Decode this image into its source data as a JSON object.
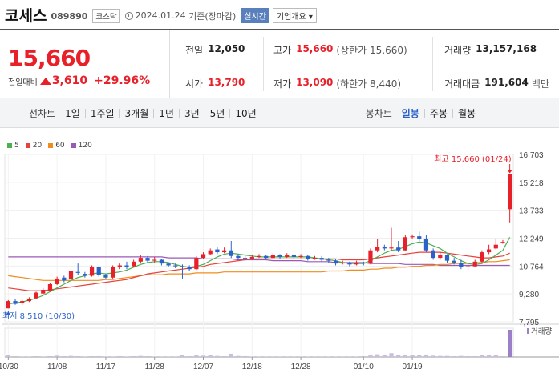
{
  "header": {
    "name": "코세스",
    "code": "089890",
    "market": "코스닥",
    "date": "2024.01.24",
    "basis": "기준(장마감)",
    "realtime": "실시간",
    "company_info": "기업개요"
  },
  "price": {
    "current": "15,660",
    "compare_label": "전일대비",
    "change": "3,610",
    "change_pct": "+29.96%"
  },
  "stats": {
    "prev_label": "전일",
    "prev": "12,050",
    "open_label": "시가",
    "open": "13,790",
    "high_label": "고가",
    "high": "15,660",
    "high_sub": "(상한가 15,660)",
    "low_label": "저가",
    "low": "13,090",
    "low_sub": "(하한가 8,440)",
    "volume_label": "거래량",
    "volume": "13,157,168",
    "amount_label": "거래대금",
    "amount": "191,604",
    "amount_unit": "백만"
  },
  "toolbar": {
    "line_label": "선차트",
    "line_items": [
      "1일",
      "1주일",
      "3개월",
      "1년",
      "3년",
      "5년",
      "10년"
    ],
    "candle_label": "봉차트",
    "candle_items": [
      "일봉",
      "주봉",
      "월봉"
    ],
    "active_candle": "일봉"
  },
  "colors": {
    "up": "#e8202a",
    "down": "#2a62c9",
    "ma5": "#4caf50",
    "ma20": "#e8413c",
    "ma60": "#f08c1e",
    "ma120": "#9b59b6"
  },
  "chart_data": {
    "type": "candlestick",
    "legend": [
      "5",
      "20",
      "60",
      "120"
    ],
    "y_ticks": [
      "16,703",
      "15,218",
      "13,733",
      "12,249",
      "10,764",
      "9,280",
      "7,795"
    ],
    "y_range": [
      7795,
      16703
    ],
    "x_ticks": [
      "10/30",
      "11/08",
      "11/17",
      "11/28",
      "12/07",
      "12/18",
      "12/28",
      "01/10",
      "01/19"
    ],
    "high_annotation": "최고 15,660 (01/24)",
    "low_annotation": "최저 8,510 (10/30)",
    "volume_label": "거래량",
    "candles": [
      [
        8510,
        8900,
        8510,
        8950
      ],
      [
        8900,
        8750,
        8700,
        9000
      ],
      [
        8800,
        8900,
        8700,
        8950
      ],
      [
        8900,
        9000,
        8850,
        9100
      ],
      [
        9050,
        9350,
        9000,
        9400
      ],
      [
        9300,
        9500,
        9250,
        9600
      ],
      [
        9450,
        9800,
        9400,
        9850
      ],
      [
        9800,
        10100,
        9750,
        10200
      ],
      [
        10150,
        10000,
        9900,
        10250
      ],
      [
        10050,
        10500,
        10000,
        10700
      ],
      [
        10450,
        10400,
        10300,
        10900
      ],
      [
        10350,
        10250,
        10150,
        10450
      ],
      [
        10250,
        10700,
        10200,
        10800
      ],
      [
        10700,
        10300,
        10200,
        10750
      ],
      [
        10300,
        10150,
        10050,
        10350
      ],
      [
        10150,
        10700,
        10100,
        10800
      ],
      [
        10700,
        10800,
        10600,
        10900
      ],
      [
        10800,
        10700,
        10600,
        11000
      ],
      [
        10750,
        11000,
        10700,
        11100
      ],
      [
        11000,
        11200,
        10900,
        11350
      ],
      [
        11200,
        11050,
        10950,
        11300
      ],
      [
        11050,
        11100,
        10950,
        11250
      ],
      [
        11100,
        10900,
        10800,
        11150
      ],
      [
        10900,
        10800,
        10700,
        10950
      ],
      [
        10800,
        10750,
        10650,
        10900
      ],
      [
        10750,
        10700,
        10100,
        10850
      ],
      [
        10700,
        10600,
        10500,
        10800
      ],
      [
        10600,
        11200,
        10550,
        11300
      ],
      [
        11200,
        11400,
        11150,
        11500
      ],
      [
        11400,
        11600,
        11350,
        11700
      ],
      [
        11650,
        11500,
        11400,
        11800
      ],
      [
        11500,
        11600,
        11450,
        11750
      ],
      [
        11600,
        11300,
        11200,
        12100
      ],
      [
        11300,
        11200,
        11100,
        11400
      ],
      [
        11200,
        11150,
        11050,
        11300
      ],
      [
        11150,
        11250,
        11100,
        11350
      ],
      [
        11250,
        11300,
        11200,
        11400
      ],
      [
        11300,
        11200,
        11100,
        11350
      ],
      [
        11200,
        11350,
        11150,
        11450
      ],
      [
        11350,
        11250,
        11150,
        11400
      ],
      [
        11250,
        11350,
        11200,
        11450
      ],
      [
        11350,
        11250,
        11150,
        11400
      ],
      [
        11250,
        11300,
        11200,
        11400
      ],
      [
        11300,
        11150,
        11050,
        11350
      ],
      [
        11150,
        11200,
        11100,
        11300
      ],
      [
        11200,
        11100,
        11000,
        11300
      ],
      [
        11100,
        11050,
        10950,
        11200
      ],
      [
        11050,
        10900,
        10800,
        11150
      ],
      [
        10900,
        10950,
        10850,
        11050
      ],
      [
        10950,
        10850,
        10750,
        11000
      ],
      [
        10850,
        10950,
        10800,
        11050
      ],
      [
        10950,
        10900,
        10800,
        11000
      ],
      [
        10900,
        11600,
        10850,
        11700
      ],
      [
        11600,
        11800,
        11500,
        12200
      ],
      [
        11800,
        11700,
        11600,
        11900
      ],
      [
        11700,
        11750,
        11600,
        12800
      ],
      [
        11750,
        11600,
        11500,
        12100
      ],
      [
        11600,
        12300,
        11550,
        12400
      ],
      [
        12300,
        12350,
        12200,
        12450
      ],
      [
        12350,
        12200,
        12100,
        12600
      ],
      [
        12200,
        11600,
        11500,
        12400
      ],
      [
        11600,
        11200,
        11100,
        11700
      ],
      [
        11200,
        11350,
        11100,
        11500
      ],
      [
        11350,
        11050,
        10950,
        11400
      ],
      [
        11050,
        10950,
        10850,
        11200
      ],
      [
        10950,
        10700,
        10600,
        11100
      ],
      [
        10700,
        10750,
        10500,
        10900
      ],
      [
        10750,
        11000,
        10700,
        11100
      ],
      [
        11000,
        11500,
        10950,
        11600
      ],
      [
        11500,
        11650,
        11400,
        11900
      ],
      [
        11700,
        11900,
        11650,
        12200
      ],
      [
        12050,
        12050,
        11950,
        12150
      ],
      [
        13790,
        15660,
        13090,
        15660
      ]
    ],
    "ma5": [
      8750,
      8800,
      8850,
      8950,
      9050,
      9200,
      9400,
      9600,
      9800,
      10000,
      10150,
      10250,
      10350,
      10400,
      10350,
      10400,
      10450,
      10550,
      10700,
      10850,
      10950,
      11000,
      11000,
      10950,
      10850,
      10750,
      10700,
      10750,
      10850,
      11050,
      11250,
      11400,
      11450,
      11400,
      11350,
      11300,
      11250,
      11250,
      11250,
      11250,
      11250,
      11250,
      11250,
      11250,
      11200,
      11150,
      11100,
      11050,
      10950,
      10900,
      10900,
      10900,
      11050,
      11250,
      11450,
      11600,
      11650,
      11800,
      11950,
      12050,
      12000,
      11850,
      11700,
      11450,
      11250,
      11050,
      10900,
      10850,
      10900,
      11100,
      11350,
      11600,
      12300
    ],
    "ma20": [
      9600,
      9550,
      9500,
      9450,
      9450,
      9450,
      9500,
      9550,
      9600,
      9650,
      9700,
      9750,
      9800,
      9850,
      9900,
      9950,
      10000,
      10050,
      10150,
      10250,
      10350,
      10400,
      10450,
      10500,
      10550,
      10600,
      10650,
      10700,
      10750,
      10850,
      10900,
      10950,
      11000,
      11050,
      11100,
      11150,
      11150,
      11150,
      11150,
      11150,
      11150,
      11150,
      11150,
      11150,
      11150,
      11150,
      11150,
      11150,
      11100,
      11100,
      11100,
      11100,
      11150,
      11200,
      11250,
      11300,
      11350,
      11400,
      11450,
      11500,
      11500,
      11500,
      11500,
      11450,
      11400,
      11350,
      11300,
      11250,
      11200,
      11200,
      11250,
      11300,
      11450
    ],
    "ma60": [
      10250,
      10200,
      10150,
      10100,
      10050,
      10000,
      10000,
      10000,
      10000,
      10000,
      10000,
      10000,
      10000,
      10000,
      10050,
      10050,
      10100,
      10150,
      10200,
      10250,
      10300,
      10300,
      10300,
      10350,
      10350,
      10350,
      10350,
      10400,
      10400,
      10400,
      10400,
      10450,
      10450,
      10450,
      10450,
      10450,
      10450,
      10450,
      10450,
      10450,
      10450,
      10450,
      10450,
      10450,
      10450,
      10450,
      10500,
      10500,
      10500,
      10550,
      10550,
      10550,
      10600,
      10600,
      10650,
      10650,
      10700,
      10700,
      10750,
      10750,
      10800,
      10800,
      10850,
      10850,
      10900,
      10900,
      10900,
      10950,
      10950,
      11000,
      11000,
      11050,
      11100
    ],
    "ma120": [
      11250,
      11250,
      11250,
      11250,
      11250,
      11250,
      11250,
      11250,
      11250,
      11250,
      11250,
      11250,
      11250,
      11250,
      11250,
      11250,
      11250,
      11250,
      11250,
      11250,
      11250,
      11250,
      11250,
      11200,
      11200,
      11200,
      11200,
      11200,
      11150,
      11150,
      11150,
      11150,
      11150,
      11100,
      11100,
      11100,
      11100,
      11100,
      11050,
      11050,
      11050,
      11050,
      11050,
      11000,
      11000,
      11000,
      11000,
      10950,
      10950,
      10950,
      10950,
      10950,
      10900,
      10900,
      10900,
      10900,
      10900,
      10850,
      10850,
      10850,
      10850,
      10850,
      10800,
      10800,
      10800,
      10800,
      10800,
      10800,
      10800,
      10800,
      10800,
      10800,
      10800
    ],
    "volume": [
      8,
      3,
      2,
      2,
      3,
      2,
      3,
      5,
      3,
      4,
      3,
      2,
      3,
      3,
      2,
      2,
      3,
      2,
      3,
      4,
      3,
      2,
      2,
      2,
      2,
      8,
      3,
      7,
      5,
      6,
      4,
      3,
      12,
      4,
      3,
      2,
      2,
      2,
      2,
      2,
      2,
      2,
      2,
      2,
      2,
      2,
      2,
      2,
      2,
      2,
      2,
      3,
      8,
      10,
      6,
      14,
      8,
      9,
      7,
      8,
      9,
      5,
      4,
      4,
      3,
      4,
      3,
      3,
      6,
      7,
      9,
      3,
      100
    ]
  }
}
